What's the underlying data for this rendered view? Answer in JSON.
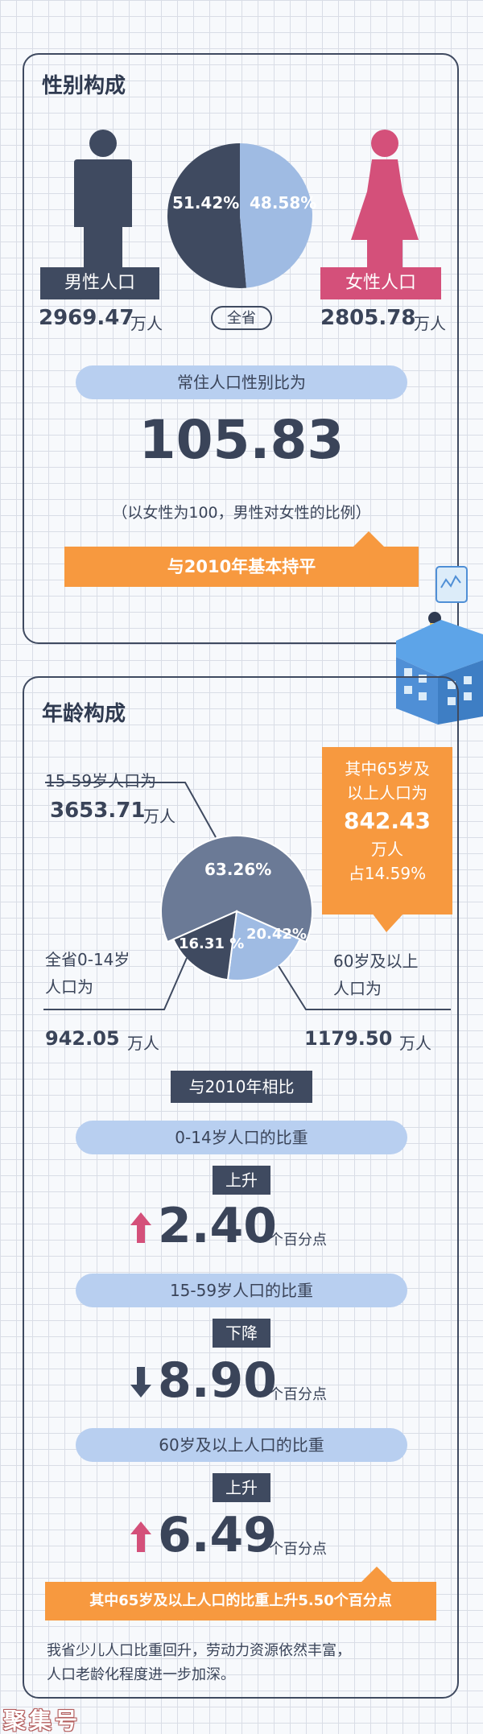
{
  "gender": {
    "title": "性别构成",
    "male_label": "男性人口",
    "male_value": "2969.47",
    "male_unit": "万人",
    "female_label": "女性人口",
    "female_value": "2805.78",
    "female_unit": "万人",
    "pie_male_pct": "51.42%",
    "pie_female_pct": "48.58%",
    "province_label": "全省",
    "ratio_label": "常住人口性别比为",
    "ratio_value": "105.83",
    "ratio_note": "（以女性为100，男性对女性的比例）",
    "compare_banner": "与2010年基本持平",
    "male_share": 0.5142,
    "colors": {
      "male": "#3f4a60",
      "female": "#d4507a",
      "female_pie": "#9fbbe3",
      "orange": "#f7993f"
    }
  },
  "age": {
    "title": "年龄构成",
    "working_label": "15-59岁人口为",
    "working_value": "3653.71",
    "working_unit": "万人",
    "callout_line1": "其中65岁及",
    "callout_line2": "以上人口为",
    "callout_value": "842.43",
    "callout_unit": "万人",
    "callout_pct": "占14.59%",
    "pct_working": "63.26%",
    "pct_child": "16.31 %",
    "pct_elder": "20.42%",
    "child_label_1": "全省0-14岁",
    "child_label_2": "人口为",
    "child_value": "942.05",
    "child_unit": "万人",
    "elder_label_1": "60岁及以上",
    "elder_label_2": "人口为",
    "elder_value": "1179.50",
    "elder_unit": "万人",
    "shares": {
      "working": 0.6326,
      "child": 0.1631,
      "elder": 0.2042
    },
    "colors": {
      "working": "#6b7a96",
      "child": "#3f4a60",
      "elder": "#9fbbe3"
    }
  },
  "comparison": {
    "header": "与2010年相比",
    "items": [
      {
        "label": "0-14岁人口的比重",
        "direction": "上升",
        "value": "2.40",
        "unit": "个百分点",
        "arrow": "up-arrow-icon"
      },
      {
        "label": "15-59岁人口的比重",
        "direction": "下降",
        "value": "8.90",
        "unit": "个百分点",
        "arrow": "down-arrow-icon"
      },
      {
        "label": "60岁及以上人口的比重",
        "direction": "上升",
        "value": "6.49",
        "unit": "个百分点",
        "arrow": "up-arrow-icon"
      }
    ],
    "elder_banner": "其中65岁及以上人口的比重上升5.50个百分点",
    "summary_line1": "我省少儿人口比重回升，劳动力资源依然丰富，",
    "summary_line2": "人口老龄化程度进一步加深。"
  },
  "watermark": "聚集号"
}
